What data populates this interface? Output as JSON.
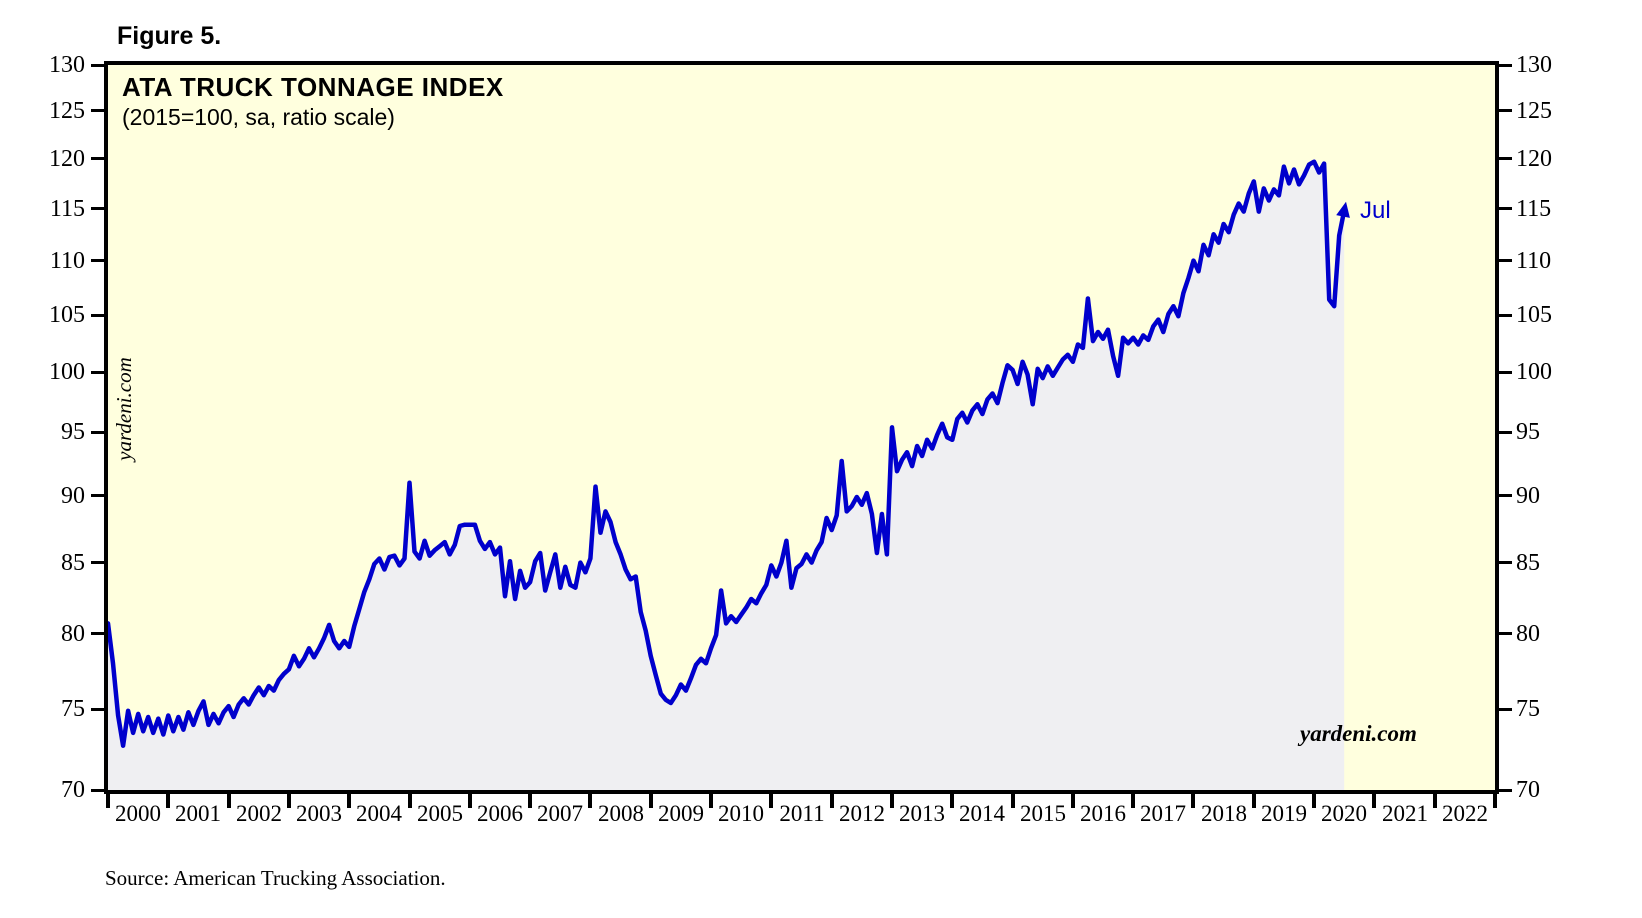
{
  "figure_label": "Figure 5.",
  "chart": {
    "title": "ATA TRUCK TONNAGE INDEX",
    "subtitle": "(2015=100, sa, ratio scale)",
    "watermark_left": "yardeni.com",
    "watermark_bottom_right": "yardeni.com",
    "source_note": "Source: American Trucking Association.",
    "colors": {
      "line": "#0000CC",
      "plot_bg": "#FFFFDE",
      "area_fill": "#EFEFF2",
      "axis": "#000000",
      "annotation": "#0000CC"
    }
  },
  "chart_data": {
    "type": "line",
    "title": "ATA TRUCK TONNAGE INDEX",
    "subtitle": "(2015=100, sa, ratio scale)",
    "y_scale": "log",
    "ylim": [
      70,
      130
    ],
    "y_ticks": [
      70,
      75,
      80,
      85,
      90,
      95,
      100,
      105,
      110,
      115,
      120,
      125,
      130
    ],
    "y_ticks_both_sides": true,
    "xlim": [
      2000,
      2023
    ],
    "x_tick_years": [
      2000,
      2001,
      2002,
      2003,
      2004,
      2005,
      2006,
      2007,
      2008,
      2009,
      2010,
      2011,
      2012,
      2013,
      2014,
      2015,
      2016,
      2017,
      2018,
      2019,
      2020,
      2021,
      2022
    ],
    "frequency": "monthly",
    "x_start_year": 2000,
    "grid": false,
    "legend": "none",
    "annotation": {
      "label": "Jul",
      "month": "2020-07"
    },
    "series": [
      {
        "name": "ATA Truck Tonnage Index (2015=100, sa)",
        "start": "2000-01",
        "end": "2020-07",
        "values": [
          80.7,
          78.0,
          74.6,
          72.7,
          74.9,
          73.5,
          74.7,
          73.6,
          74.5,
          73.5,
          74.4,
          73.4,
          74.6,
          73.6,
          74.5,
          73.7,
          74.8,
          74.0,
          74.9,
          75.5,
          74.0,
          74.7,
          74.1,
          74.8,
          75.2,
          74.5,
          75.3,
          75.7,
          75.3,
          75.9,
          76.4,
          75.9,
          76.5,
          76.2,
          76.9,
          77.3,
          77.6,
          78.5,
          77.8,
          78.3,
          79.0,
          78.4,
          79.0,
          79.7,
          80.6,
          79.5,
          79.0,
          79.5,
          79.1,
          80.5,
          81.7,
          82.9,
          83.8,
          84.9,
          85.3,
          84.5,
          85.4,
          85.5,
          84.8,
          85.3,
          91.0,
          85.8,
          85.3,
          86.6,
          85.5,
          85.9,
          86.2,
          86.5,
          85.6,
          86.3,
          87.7,
          87.8,
          87.8,
          87.8,
          86.6,
          86.0,
          86.5,
          85.6,
          86.1,
          82.6,
          85.1,
          82.4,
          84.4,
          83.2,
          83.6,
          85.1,
          85.7,
          83.0,
          84.3,
          85.6,
          83.2,
          84.7,
          83.4,
          83.2,
          85.0,
          84.3,
          85.3,
          90.7,
          87.2,
          88.8,
          88.0,
          86.5,
          85.6,
          84.5,
          83.8,
          84.0,
          81.5,
          80.2,
          78.5,
          77.2,
          76.0,
          75.6,
          75.4,
          75.9,
          76.6,
          76.2,
          77.0,
          77.9,
          78.3,
          78.0,
          79.0,
          79.9,
          83.0,
          80.7,
          81.2,
          80.8,
          81.3,
          81.8,
          82.4,
          82.1,
          82.8,
          83.4,
          84.8,
          84.0,
          85.0,
          86.6,
          83.2,
          84.6,
          84.9,
          85.6,
          85.0,
          85.9,
          86.5,
          88.3,
          87.4,
          88.5,
          92.7,
          88.8,
          89.2,
          89.9,
          89.3,
          90.2,
          88.6,
          85.7,
          88.6,
          85.6,
          95.4,
          91.9,
          92.8,
          93.4,
          92.3,
          93.9,
          93.1,
          94.4,
          93.7,
          94.8,
          95.7,
          94.6,
          94.4,
          96.1,
          96.6,
          95.8,
          96.8,
          97.3,
          96.5,
          97.7,
          98.2,
          97.4,
          99.1,
          100.6,
          100.2,
          99.0,
          100.9,
          99.8,
          97.3,
          100.3,
          99.5,
          100.5,
          99.7,
          100.4,
          101.1,
          101.5,
          100.9,
          102.4,
          102.1,
          106.5,
          102.7,
          103.5,
          102.9,
          103.7,
          101.4,
          99.7,
          103.0,
          102.5,
          103.0,
          102.4,
          103.2,
          102.8,
          104.0,
          104.6,
          103.5,
          105.1,
          105.8,
          104.9,
          107.0,
          108.4,
          110.0,
          109.0,
          111.5,
          110.5,
          112.5,
          111.7,
          113.5,
          112.7,
          114.4,
          115.5,
          114.7,
          116.5,
          117.7,
          114.7,
          117.0,
          115.8,
          116.9,
          116.3,
          119.2,
          117.5,
          118.9,
          117.4,
          118.3,
          119.4,
          119.7,
          118.6,
          119.5,
          106.4,
          105.8,
          112.4,
          114.8
        ]
      }
    ]
  }
}
